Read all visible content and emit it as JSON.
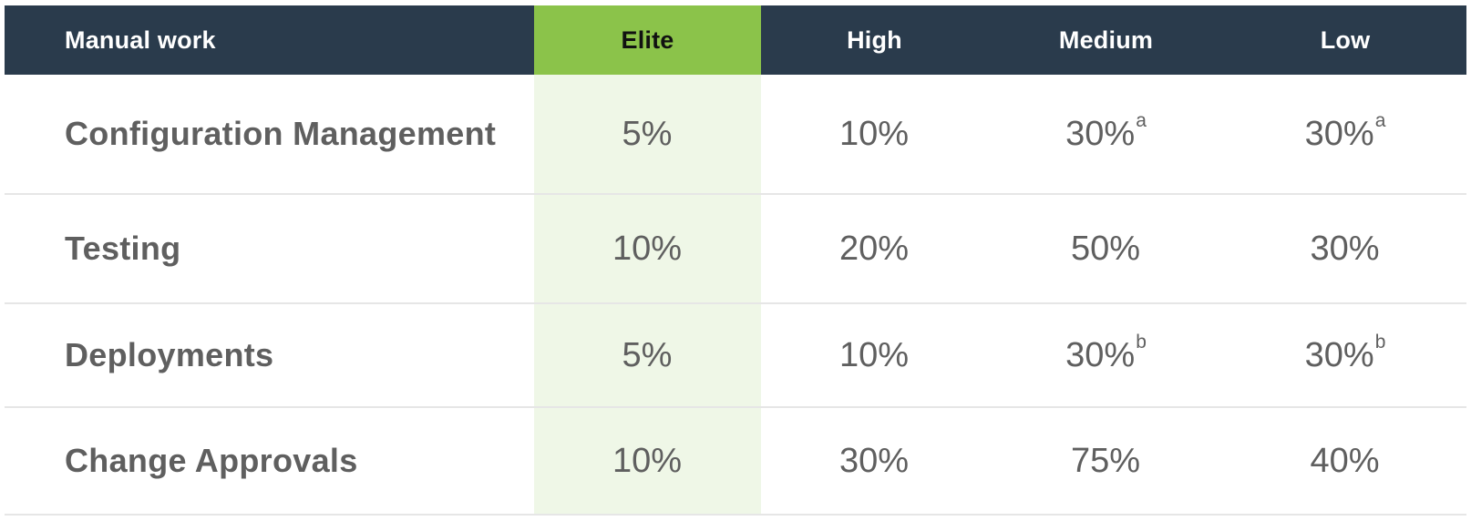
{
  "colors": {
    "header_background": "#2a3b4c",
    "elite_header": "#8bc34a",
    "elite_column": "#eff7e7",
    "text": "#5f5f5f",
    "row_divider": "#e6e6e6"
  },
  "header": {
    "label": "Manual work",
    "columns": [
      "Elite",
      "High",
      "Medium",
      "Low"
    ]
  },
  "rows": [
    {
      "label": "Configuration Management",
      "cells": [
        {
          "value": "5%",
          "note": ""
        },
        {
          "value": "10%",
          "note": ""
        },
        {
          "value": "30%",
          "note": "a"
        },
        {
          "value": "30%",
          "note": "a"
        }
      ]
    },
    {
      "label": "Testing",
      "cells": [
        {
          "value": "10%",
          "note": ""
        },
        {
          "value": "20%",
          "note": ""
        },
        {
          "value": "50%",
          "note": ""
        },
        {
          "value": "30%",
          "note": ""
        }
      ]
    },
    {
      "label": "Deployments",
      "cells": [
        {
          "value": "5%",
          "note": ""
        },
        {
          "value": "10%",
          "note": ""
        },
        {
          "value": "30%",
          "note": "b"
        },
        {
          "value": "30%",
          "note": "b"
        }
      ]
    },
    {
      "label": "Change Approvals",
      "cells": [
        {
          "value": "10%",
          "note": ""
        },
        {
          "value": "30%",
          "note": ""
        },
        {
          "value": "75%",
          "note": ""
        },
        {
          "value": "40%",
          "note": ""
        }
      ]
    }
  ]
}
